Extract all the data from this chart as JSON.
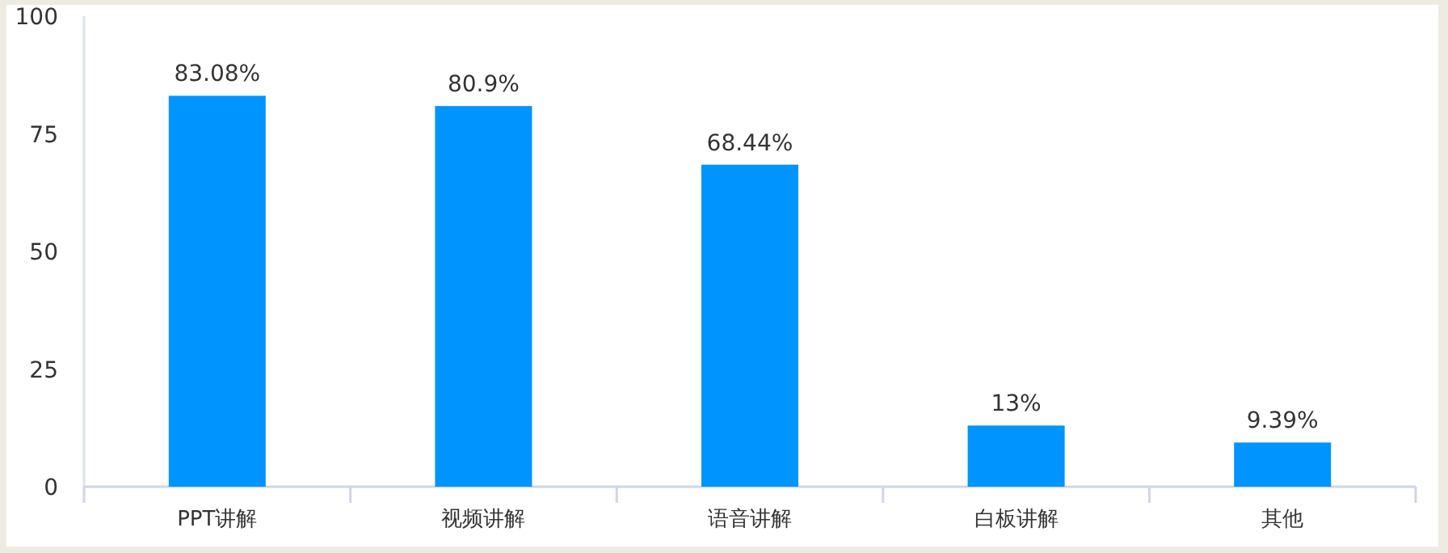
{
  "chart_data": {
    "type": "bar",
    "categories": [
      "PPT讲解",
      "视频讲解",
      "语音讲解",
      "白板讲解",
      "其他"
    ],
    "values": [
      83.08,
      80.9,
      68.44,
      13,
      9.39
    ],
    "value_labels": [
      "83.08%",
      "80.9%",
      "68.44%",
      "13%",
      "9.39%"
    ],
    "color": "#0094ff",
    "ylim": [
      0,
      100
    ],
    "yticks": [
      0,
      25,
      50,
      75,
      100
    ],
    "grid": false
  }
}
